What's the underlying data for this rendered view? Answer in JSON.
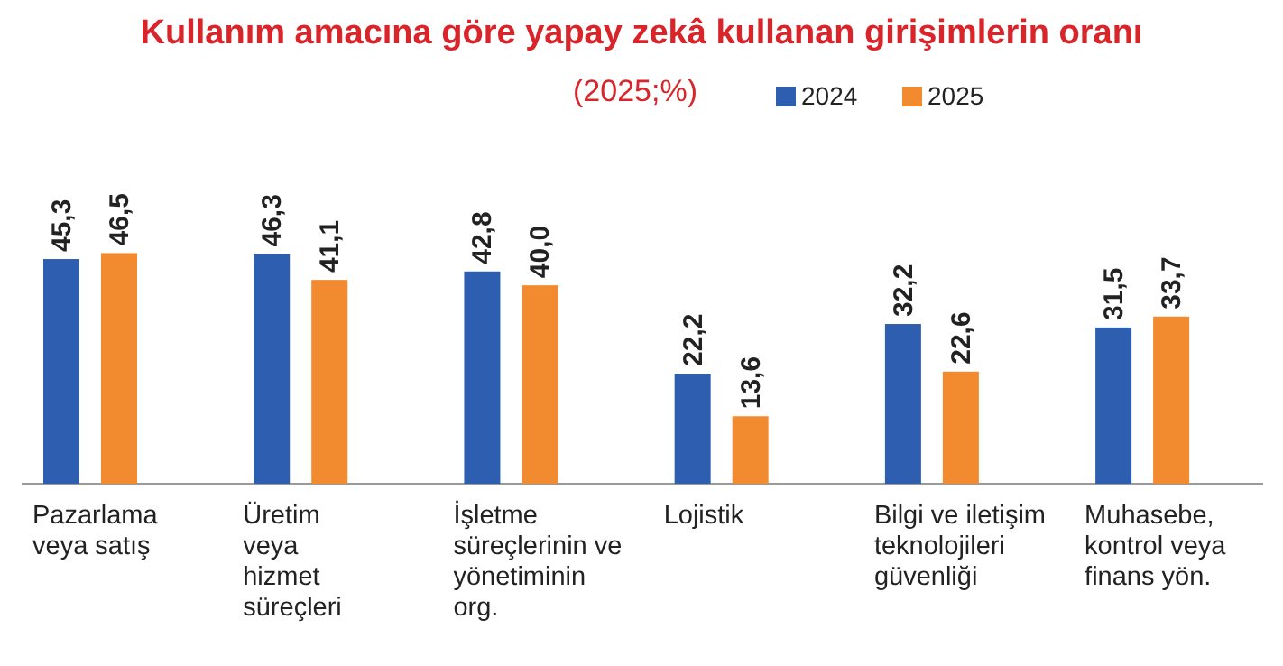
{
  "chart_data": {
    "type": "bar",
    "title": "Kullanım amacına göre yapay zekâ kullanan girişimlerin oranı",
    "subtitle": "(2025;%)",
    "categories": [
      "Pazarlama\nveya satış",
      "Üretim\nveya\nhizmet\nsüreçleri",
      "İşletme\nsüreçlerinin ve\nyönetiminin\norg.",
      "Lojistik",
      "Bilgi ve iletişim\nteknolojileri\ngüvenliği",
      "Muhasebe,\nkontrol veya\nfinans yön."
    ],
    "series": [
      {
        "name": "2024",
        "color": "#2e5eb0",
        "values": [
          45.3,
          46.3,
          42.8,
          22.2,
          32.2,
          31.5
        ],
        "value_labels": [
          "45,3",
          "46,3",
          "42,8",
          "22,2",
          "32,2",
          "31,5"
        ]
      },
      {
        "name": "2025",
        "color": "#f28a30",
        "values": [
          46.5,
          41.1,
          40.0,
          13.6,
          22.6,
          33.7
        ],
        "value_labels": [
          "46,5",
          "41,1",
          "40,0",
          "13,6",
          "22,6",
          "33,7"
        ]
      }
    ],
    "legend": "top"
  }
}
